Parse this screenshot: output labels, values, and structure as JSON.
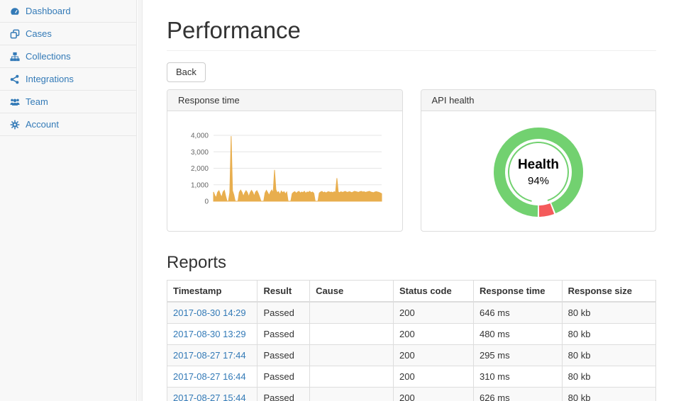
{
  "sidebar": {
    "items": [
      {
        "label": "Dashboard",
        "icon": "tachometer-icon"
      },
      {
        "label": "Cases",
        "icon": "clone-icon"
      },
      {
        "label": "Collections",
        "icon": "sitemap-icon"
      },
      {
        "label": "Integrations",
        "icon": "share-icon"
      },
      {
        "label": "Team",
        "icon": "users-icon"
      },
      {
        "label": "Account",
        "icon": "gear-icon"
      }
    ]
  },
  "page": {
    "title": "Performance",
    "back_label": "Back"
  },
  "panels": {
    "response_time": {
      "title": "Response time"
    },
    "api_health": {
      "title": "API health"
    }
  },
  "reports": {
    "title": "Reports",
    "table": {
      "headers": [
        "Timestamp",
        "Result",
        "Cause",
        "Status code",
        "Response time",
        "Response size"
      ],
      "rows": [
        [
          "2017-08-30 14:29",
          "Passed",
          "",
          "200",
          "646 ms",
          "80 kb"
        ],
        [
          "2017-08-30 13:29",
          "Passed",
          "",
          "200",
          "480 ms",
          "80 kb"
        ],
        [
          "2017-08-27 17:44",
          "Passed",
          "",
          "200",
          "295 ms",
          "80 kb"
        ],
        [
          "2017-08-27 16:44",
          "Passed",
          "",
          "200",
          "310 ms",
          "80 kb"
        ],
        [
          "2017-08-27 15:44",
          "Passed",
          "",
          "200",
          "626 ms",
          "80 kb"
        ]
      ]
    }
  },
  "colors": {
    "accent": "#337ab7",
    "chart_gold": "#e8ae4e",
    "grid": "#e6e6e6",
    "health_green": "#72d170",
    "health_red": "#f45b5b"
  },
  "chart_data": [
    {
      "type": "area",
      "title": "Response time",
      "color": "#e8ae4e",
      "xlabel": "",
      "ylabel": "",
      "ylim": [
        0,
        4000
      ],
      "grid": true,
      "legend": false,
      "yticks": [
        {
          "value": 0,
          "label": "0"
        },
        {
          "value": 1000,
          "label": "1,000"
        },
        {
          "value": 2000,
          "label": "2,000"
        },
        {
          "value": 3000,
          "label": "3,000"
        },
        {
          "value": 4000,
          "label": "4,000"
        }
      ],
      "values": [
        560,
        340,
        220,
        540,
        640,
        420,
        240,
        560,
        660,
        300,
        0,
        0,
        520,
        3950,
        640,
        380,
        0,
        0,
        0,
        540,
        680,
        540,
        300,
        500,
        640,
        520,
        280,
        520,
        660,
        540,
        320,
        560,
        640,
        480,
        260,
        0,
        0,
        0,
        500,
        660,
        520,
        360,
        560,
        680,
        500,
        1900,
        700,
        520,
        580,
        400,
        620,
        520,
        580,
        440,
        560,
        0,
        0,
        0,
        460,
        540,
        580,
        480,
        560,
        600,
        500,
        560,
        520,
        600,
        480,
        560,
        540,
        600,
        520,
        560,
        480,
        0,
        0,
        0,
        500,
        560,
        600,
        520,
        560,
        500,
        560,
        580,
        540,
        560,
        520,
        580,
        540,
        1400,
        560,
        520,
        580,
        540,
        560,
        600,
        560,
        540,
        580,
        560,
        520,
        560,
        600,
        580,
        560,
        540,
        580,
        600,
        560,
        580,
        540,
        560,
        580,
        600,
        560,
        540,
        520,
        560,
        580,
        560,
        540,
        500,
        460
      ]
    },
    {
      "type": "pie",
      "title": "API health",
      "donut": true,
      "center_label": "Health",
      "center_value": "94%",
      "slices": [
        {
          "name": "Health",
          "value": 94,
          "color": "#72d170"
        },
        {
          "name": "",
          "value": 6,
          "color": "#f45b5b"
        }
      ]
    }
  ]
}
